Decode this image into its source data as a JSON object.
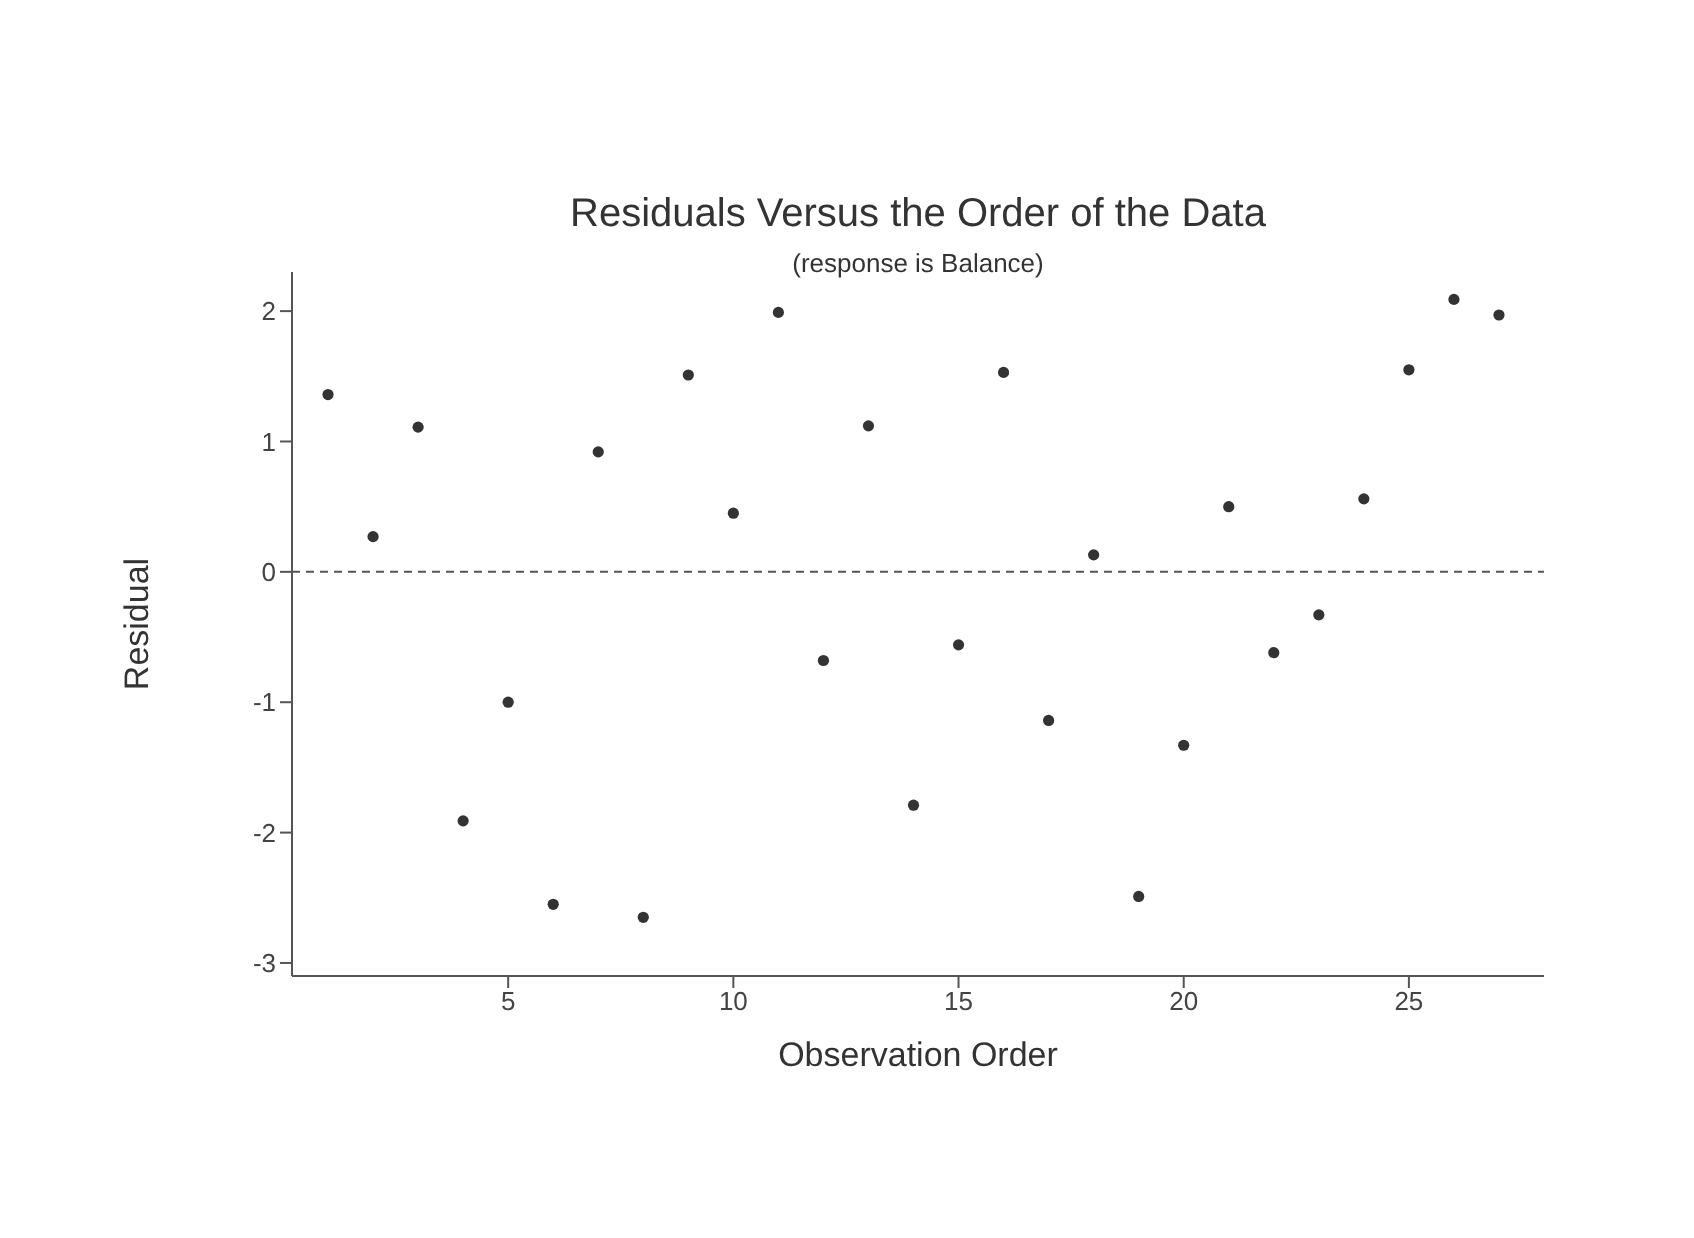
{
  "chart_data": {
    "type": "scatter",
    "title": "Residuals Versus the Order of the Data",
    "subtitle": "(response is Balance)",
    "xlabel": "Observation Order",
    "ylabel": "Residual",
    "x": [
      1,
      2,
      3,
      4,
      5,
      6,
      7,
      8,
      9,
      10,
      11,
      12,
      13,
      14,
      15,
      16,
      17,
      18,
      19,
      20,
      21,
      22,
      23,
      24,
      25,
      26,
      27
    ],
    "series": [
      {
        "color": "#333333",
        "values": [
          1.36,
          0.27,
          1.11,
          -1.91,
          -1.0,
          -2.55,
          0.92,
          -2.65,
          1.51,
          0.45,
          1.99,
          -0.68,
          1.12,
          -1.79,
          -0.56,
          1.53,
          -1.14,
          0.13,
          -2.49,
          -1.33,
          0.5,
          -0.62,
          -0.33,
          0.56,
          1.55,
          2.09,
          1.97
        ]
      }
    ],
    "xlim": [
      0.2,
      28
    ],
    "xticks": [
      5,
      10,
      15,
      20,
      25
    ],
    "ylim": [
      -3.1,
      2.3
    ],
    "yticks": [
      -3,
      -2,
      -1,
      0,
      1,
      2
    ],
    "ref_lines": [
      {
        "axis": "y",
        "value": 0,
        "color": "#555555",
        "line_style": "dashed"
      }
    ],
    "marker": "circle"
  }
}
